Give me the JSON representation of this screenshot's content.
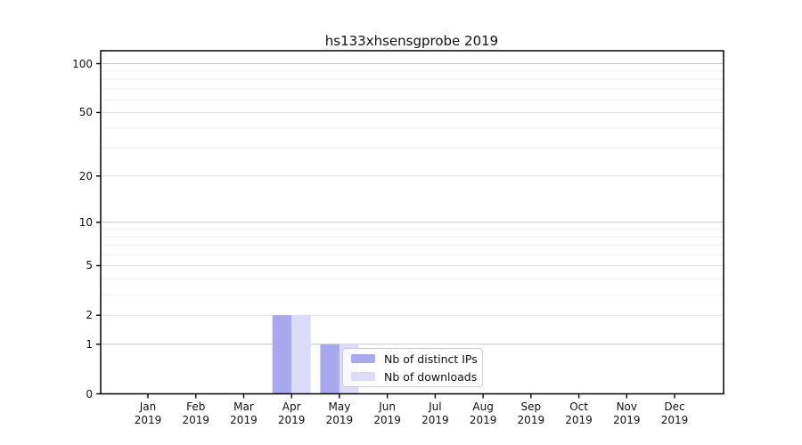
{
  "title": "hs133xhsensgprobe 2019",
  "legend": {
    "items": [
      {
        "label": "Nb of distinct IPs",
        "color": "#a8a8ef"
      },
      {
        "label": "Nb of downloads",
        "color": "#dcdcfa"
      }
    ]
  },
  "chart_data": {
    "type": "bar",
    "title": "hs133xhsensgprobe 2019",
    "categories": [
      "Jan",
      "Feb",
      "Mar",
      "Apr",
      "May",
      "Jun",
      "Jul",
      "Aug",
      "Sep",
      "Oct",
      "Nov",
      "Dec"
    ],
    "year_label": "2019",
    "series": [
      {
        "name": "Nb of distinct IPs",
        "color": "#a8a8ef",
        "values": [
          0,
          0,
          0,
          2,
          1,
          0,
          0,
          0,
          0,
          0,
          0,
          0
        ]
      },
      {
        "name": "Nb of downloads",
        "color": "#dcdcfa",
        "values": [
          0,
          0,
          0,
          2,
          1,
          0,
          0,
          0,
          0,
          0,
          0,
          0
        ]
      }
    ],
    "y_scale": "log1p",
    "ylim": [
      0,
      120
    ],
    "y_ticks": [
      0,
      1,
      2,
      5,
      10,
      20,
      50,
      100
    ],
    "y_major_grid": [
      1,
      10,
      100
    ],
    "y_mid_grid": [
      2,
      5,
      20,
      50
    ],
    "y_minor_grid": [
      3,
      4,
      6,
      7,
      8,
      9,
      30,
      40,
      60,
      70,
      80,
      90
    ],
    "grid": true,
    "legend_position": "lower center-right inside plot",
    "colors": {
      "spine": "#000000",
      "grid_major": "#c8c8c8",
      "grid_mid": "#e4e4e4",
      "grid_minor": "#efefef",
      "text": "#111111"
    }
  }
}
